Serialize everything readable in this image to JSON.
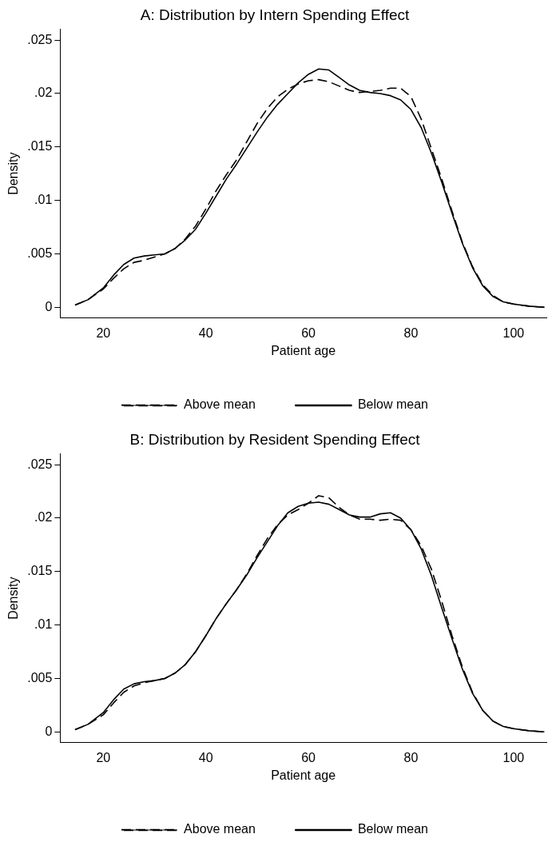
{
  "chart_data": [
    {
      "type": "line",
      "title": "A: Distribution by Intern Spending Effect",
      "xlabel": "Patient age",
      "ylabel": "Density",
      "xlim": [
        11.6,
        106.4
      ],
      "xticks": [
        20,
        40,
        60,
        80,
        100
      ],
      "ylim": [
        -0.001,
        0.026
      ],
      "yticks": [
        {
          "value": 0,
          "label": "0"
        },
        {
          "value": 0.005,
          "label": ".005"
        },
        {
          "value": 0.01,
          "label": ".01"
        },
        {
          "value": 0.015,
          "label": ".015"
        },
        {
          "value": 0.02,
          "label": ".02"
        },
        {
          "value": 0.025,
          "label": ".025"
        }
      ],
      "grid": false,
      "legend": "bottom",
      "marker": "none",
      "x": [
        14.5,
        17,
        20,
        22,
        24,
        26,
        28,
        30,
        32,
        34,
        36,
        38,
        40,
        42,
        44,
        46,
        48,
        50,
        52,
        54,
        56,
        58,
        60,
        62,
        64,
        66,
        68,
        70,
        72,
        74,
        76,
        78,
        80,
        82,
        84,
        86,
        88,
        90,
        92,
        94,
        96,
        98,
        100,
        103,
        106
      ],
      "series": [
        {
          "name": "Above mean",
          "color": "#000000",
          "line_style": "dashed",
          "values": [
            0.0002,
            0.0007,
            0.0017,
            0.0027,
            0.0036,
            0.0042,
            0.0044,
            0.0047,
            0.005,
            0.0055,
            0.0064,
            0.0076,
            0.0092,
            0.0109,
            0.0124,
            0.0138,
            0.0155,
            0.0172,
            0.0186,
            0.0197,
            0.0204,
            0.0209,
            0.0212,
            0.0213,
            0.0211,
            0.0207,
            0.0203,
            0.0201,
            0.0202,
            0.0203,
            0.0205,
            0.0205,
            0.0197,
            0.0176,
            0.0148,
            0.012,
            0.009,
            0.0061,
            0.0038,
            0.0021,
            0.0011,
            0.0005,
            0.0003,
            0.0001,
            0
          ]
        },
        {
          "name": "Below mean",
          "color": "#000000",
          "line_style": "solid",
          "values": [
            0.0002,
            0.0007,
            0.0018,
            0.003,
            0.004,
            0.0046,
            0.0048,
            0.0049,
            0.005,
            0.0055,
            0.0063,
            0.0073,
            0.0088,
            0.0104,
            0.012,
            0.0134,
            0.0149,
            0.0164,
            0.0178,
            0.019,
            0.02,
            0.021,
            0.0218,
            0.0223,
            0.0222,
            0.0215,
            0.0208,
            0.0203,
            0.0201,
            0.02,
            0.0198,
            0.0194,
            0.0185,
            0.0168,
            0.0144,
            0.0117,
            0.0088,
            0.006,
            0.0037,
            0.002,
            0.001,
            0.0005,
            0.0003,
            0.0001,
            0
          ]
        }
      ]
    },
    {
      "type": "line",
      "title": "B: Distribution by Resident Spending Effect",
      "xlabel": "Patient age",
      "ylabel": "Density",
      "xlim": [
        11.6,
        106.4
      ],
      "xticks": [
        20,
        40,
        60,
        80,
        100
      ],
      "ylim": [
        -0.001,
        0.026
      ],
      "yticks": [
        {
          "value": 0,
          "label": "0"
        },
        {
          "value": 0.005,
          "label": ".005"
        },
        {
          "value": 0.01,
          "label": ".01"
        },
        {
          "value": 0.015,
          "label": ".015"
        },
        {
          "value": 0.02,
          "label": ".02"
        },
        {
          "value": 0.025,
          "label": ".025"
        }
      ],
      "grid": false,
      "legend": "bottom",
      "marker": "none",
      "x": [
        14.5,
        17,
        20,
        22,
        24,
        26,
        28,
        30,
        32,
        34,
        36,
        38,
        40,
        42,
        44,
        46,
        48,
        50,
        52,
        54,
        56,
        58,
        60,
        62,
        64,
        66,
        68,
        70,
        72,
        74,
        76,
        78,
        80,
        82,
        84,
        86,
        88,
        90,
        92,
        94,
        96,
        98,
        100,
        103,
        106
      ],
      "series": [
        {
          "name": "Above mean",
          "color": "#000000",
          "line_style": "dashed",
          "values": [
            0.0002,
            0.0007,
            0.0016,
            0.0027,
            0.0037,
            0.0043,
            0.0046,
            0.0048,
            0.005,
            0.0055,
            0.0063,
            0.0075,
            0.009,
            0.0106,
            0.012,
            0.0133,
            0.0148,
            0.0165,
            0.0181,
            0.0194,
            0.0203,
            0.0208,
            0.0214,
            0.0221,
            0.0219,
            0.021,
            0.0203,
            0.0199,
            0.0199,
            0.0198,
            0.0199,
            0.0198,
            0.0189,
            0.0174,
            0.0152,
            0.0122,
            0.009,
            0.0061,
            0.0037,
            0.002,
            0.001,
            0.0005,
            0.0003,
            0.0001,
            0
          ]
        },
        {
          "name": "Below mean",
          "color": "#000000",
          "line_style": "solid",
          "values": [
            0.0002,
            0.0007,
            0.0018,
            0.003,
            0.004,
            0.0045,
            0.0047,
            0.0048,
            0.005,
            0.0055,
            0.0063,
            0.0075,
            0.009,
            0.0106,
            0.012,
            0.0133,
            0.0147,
            0.0163,
            0.0178,
            0.0193,
            0.0205,
            0.0211,
            0.0214,
            0.0215,
            0.0213,
            0.0208,
            0.0203,
            0.0201,
            0.0201,
            0.0204,
            0.0205,
            0.02,
            0.0189,
            0.0171,
            0.0146,
            0.0116,
            0.0087,
            0.0059,
            0.0036,
            0.002,
            0.001,
            0.0005,
            0.0003,
            0.0001,
            0
          ]
        }
      ]
    }
  ]
}
